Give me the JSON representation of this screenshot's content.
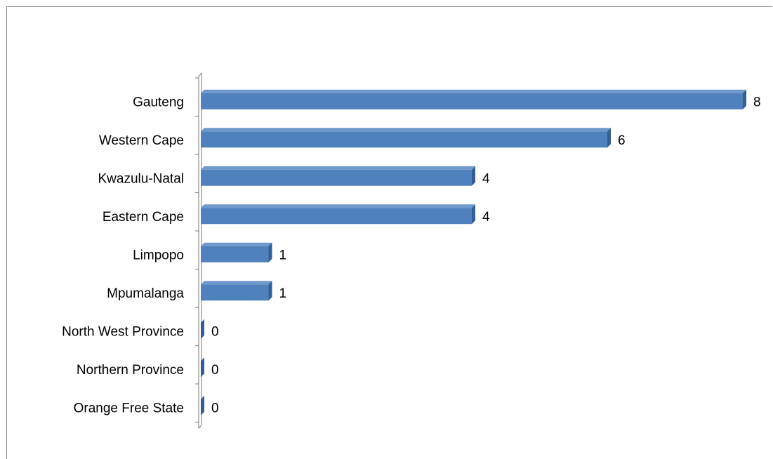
{
  "chart_data": {
    "type": "bar",
    "orientation": "horizontal",
    "style": "3d",
    "categories": [
      "Gauteng",
      "Western Cape",
      "Kwazulu-Natal",
      "Eastern Cape",
      "Limpopo",
      "Mpumalanga",
      "North West Province",
      "Northern Province",
      "Orange Free State"
    ],
    "values": [
      8,
      6,
      4,
      4,
      1,
      1,
      0,
      0,
      0
    ],
    "data_labels": [
      "8",
      "6",
      "4",
      "4",
      "1",
      "1",
      "0",
      "0",
      "0"
    ],
    "xlim": [
      0,
      8
    ],
    "grid": false,
    "legend": "none",
    "title": "",
    "xlabel": "",
    "ylabel": ""
  },
  "colors": {
    "bar_front": "#4f81bd",
    "bar_top": "#6f98cc",
    "bar_side": "#345f94",
    "axis": "#8c8c8c"
  }
}
